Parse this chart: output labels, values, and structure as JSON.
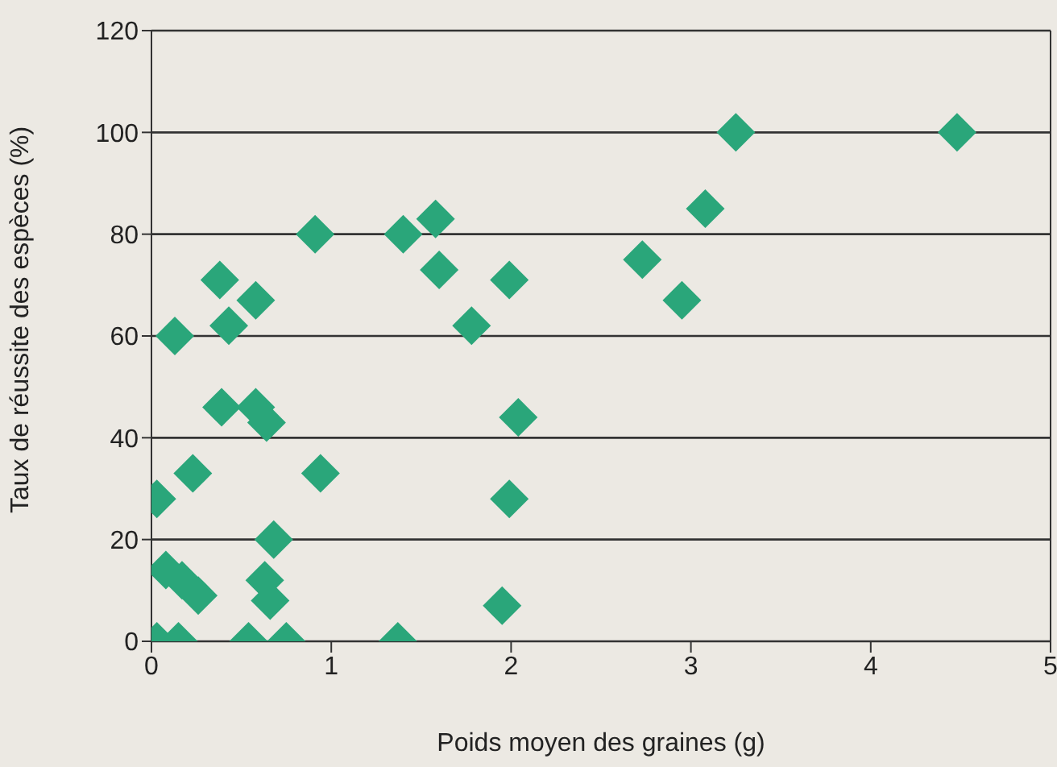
{
  "chart_data": {
    "type": "scatter",
    "xlabel": "Poids moyen des graines (g)",
    "ylabel": "Taux de réussite des espèces (%)",
    "x": [
      0.03,
      0.15,
      0.54,
      0.75,
      1.37,
      0.08,
      0.17,
      0.26,
      0.63,
      0.66,
      1.95,
      0.68,
      0.03,
      1.99,
      0.23,
      0.94,
      0.39,
      0.58,
      0.64,
      2.04,
      0.13,
      0.43,
      0.58,
      0.38,
      1.78,
      1.99,
      1.6,
      0.91,
      1.4,
      1.58,
      2.73,
      2.95,
      3.08,
      3.25,
      4.48
    ],
    "values": [
      0,
      0,
      0,
      0,
      0,
      14,
      12,
      9,
      12,
      8,
      7,
      20,
      28,
      28,
      33,
      33,
      46,
      46,
      43,
      44,
      60,
      62,
      67,
      71,
      62,
      71,
      73,
      80,
      80,
      83,
      75,
      67,
      85,
      100,
      100
    ],
    "color": "#2aa67a",
    "marker": "diamond",
    "xlim": [
      0,
      5
    ],
    "xticks": [
      0,
      1,
      2,
      3,
      4,
      5
    ],
    "ylim": [
      0,
      120
    ],
    "yticks": [
      0,
      20,
      40,
      60,
      80,
      100,
      120
    ],
    "grid": "y"
  }
}
